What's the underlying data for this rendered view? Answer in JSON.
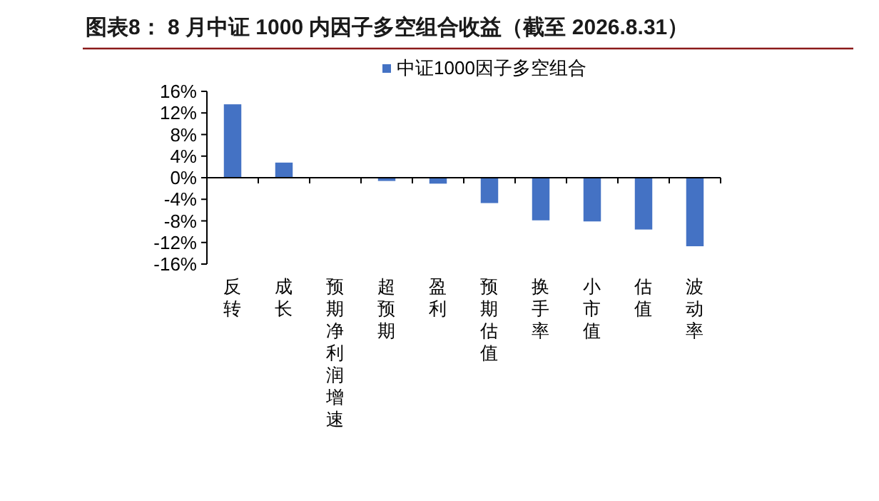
{
  "chart_data": {
    "type": "bar",
    "title": "图表8：  8 月中证 1000 内因子多空组合收益（截至 2026.8.31）",
    "categories": [
      "反转",
      "成长",
      "预期净利润增速",
      "超预期",
      "盈利",
      "预期估值",
      "换手率",
      "小市值",
      "估值",
      "波动率"
    ],
    "series": [
      {
        "name": "中证1000因子多空组合",
        "color": "#4472c4",
        "values": [
          13.6,
          2.8,
          0,
          -0.6,
          -1.1,
          -4.7,
          -7.9,
          -8.1,
          -9.6,
          -12.7
        ]
      }
    ],
    "ylim": [
      -16,
      16
    ],
    "yticks": [
      {
        "value": 16,
        "label": "16%"
      },
      {
        "value": 12,
        "label": "12%"
      },
      {
        "value": 8,
        "label": "8%"
      },
      {
        "value": 4,
        "label": "4%"
      },
      {
        "value": 0,
        "label": "0%"
      },
      {
        "value": -4,
        "label": "-4%"
      },
      {
        "value": -8,
        "label": "-8%"
      },
      {
        "value": -12,
        "label": "-12%"
      },
      {
        "value": -16,
        "label": "-16%"
      }
    ],
    "legend": "top"
  }
}
